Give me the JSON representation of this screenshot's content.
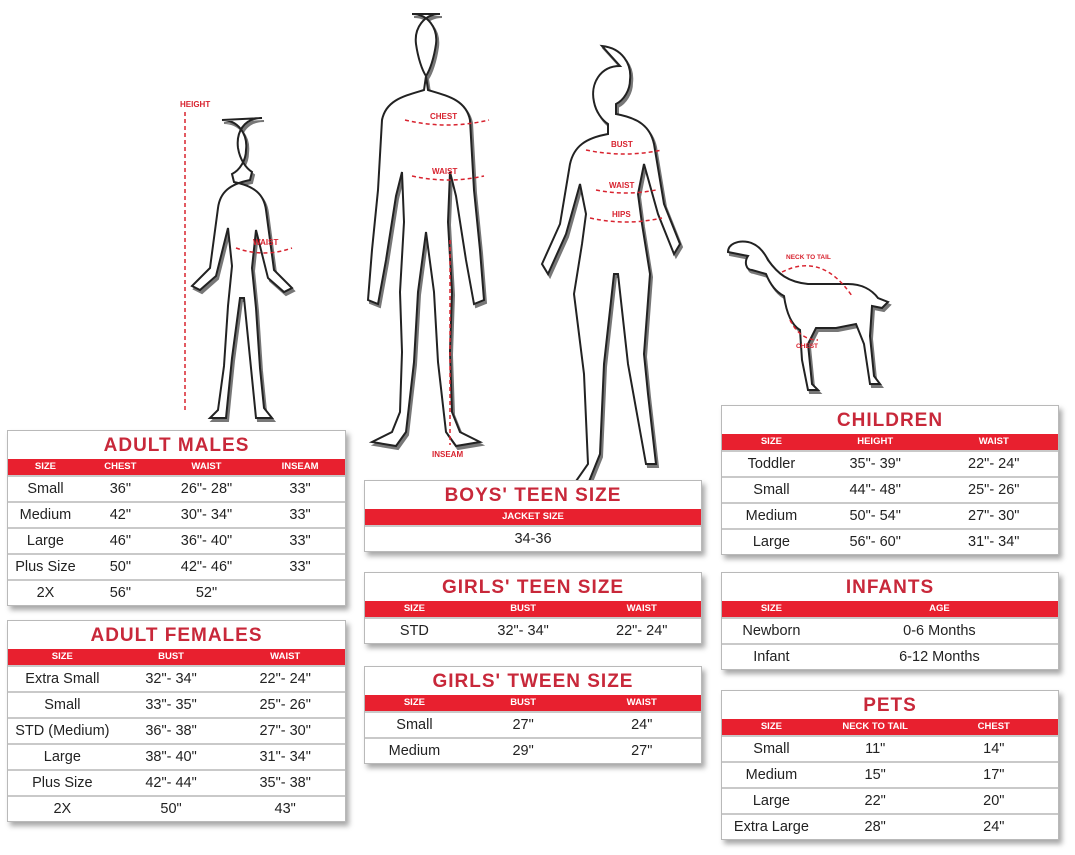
{
  "figure_labels": {
    "child_height": "HEIGHT",
    "child_waist": "WAIST",
    "man_chest": "CHEST",
    "man_waist": "WAIST",
    "man_inseam": "INSEAM",
    "woman_bust": "BUST",
    "woman_waist": "WAIST",
    "woman_hips": "HIPS",
    "dog_neck_to_tail": "NECK TO TAIL",
    "dog_chest": "CHEST"
  },
  "colors": {
    "header_red": "#e8202f",
    "title_red": "#c8283a",
    "measure_red": "#d8232f"
  },
  "tables": {
    "adult_males": {
      "title": "ADULT MALES",
      "headers": [
        "SIZE",
        "CHEST",
        "WAIST",
        "INSEAM"
      ],
      "rows": [
        [
          "Small",
          "36\"",
          "26\"- 28\"",
          "33\""
        ],
        [
          "Medium",
          "42\"",
          "30\"- 34\"",
          "33\""
        ],
        [
          "Large",
          "46\"",
          "36\"- 40\"",
          "33\""
        ],
        [
          "Plus Size",
          "50\"",
          "42\"- 46\"",
          "33\""
        ],
        [
          "2X",
          "56\"",
          "52\"",
          ""
        ]
      ]
    },
    "adult_females": {
      "title": "ADULT FEMALES",
      "headers": [
        "SIZE",
        "BUST",
        "WAIST"
      ],
      "rows": [
        [
          "Extra Small",
          "32\"- 34\"",
          "22\"- 24\""
        ],
        [
          "Small",
          "33\"- 35\"",
          "25\"- 26\""
        ],
        [
          "STD (Medium)",
          "36\"- 38\"",
          "27\"- 30\""
        ],
        [
          "Large",
          "38\"- 40\"",
          "31\"- 34\""
        ],
        [
          "Plus Size",
          "42\"- 44\"",
          "35\"- 38\""
        ],
        [
          "2X",
          "50\"",
          "43\""
        ]
      ]
    },
    "boys_teen": {
      "title": "BOYS' TEEN SIZE",
      "headers": [
        "JACKET SIZE"
      ],
      "rows": [
        [
          "34-36"
        ]
      ]
    },
    "girls_teen": {
      "title": "GIRLS' TEEN SIZE",
      "headers": [
        "SIZE",
        "BUST",
        "WAIST"
      ],
      "rows": [
        [
          "STD",
          "32\"- 34\"",
          "22\"- 24\""
        ]
      ]
    },
    "girls_tween": {
      "title": "GIRLS' TWEEN SIZE",
      "headers": [
        "SIZE",
        "BUST",
        "WAIST"
      ],
      "rows": [
        [
          "Small",
          "27\"",
          "24\""
        ],
        [
          "Medium",
          "29\"",
          "27\""
        ]
      ]
    },
    "children": {
      "title": "CHILDREN",
      "headers": [
        "SIZE",
        "HEIGHT",
        "WAIST"
      ],
      "rows": [
        [
          "Toddler",
          "35\"- 39\"",
          "22\"- 24\""
        ],
        [
          "Small",
          "44\"- 48\"",
          "25\"- 26\""
        ],
        [
          "Medium",
          "50\"- 54\"",
          "27\"- 30\""
        ],
        [
          "Large",
          "56\"- 60\"",
          "31\"- 34\""
        ]
      ]
    },
    "infants": {
      "title": "INFANTS",
      "headers": [
        "SIZE",
        "AGE"
      ],
      "rows": [
        [
          "Newborn",
          "0-6 Months"
        ],
        [
          "Infant",
          "6-12 Months"
        ]
      ]
    },
    "pets": {
      "title": "PETS",
      "headers": [
        "SIZE",
        "NECK TO TAIL",
        "CHEST"
      ],
      "rows": [
        [
          "Small",
          "11\"",
          "14\""
        ],
        [
          "Medium",
          "15\"",
          "17\""
        ],
        [
          "Large",
          "22\"",
          "20\""
        ],
        [
          "Extra Large",
          "28\"",
          "24\""
        ]
      ]
    }
  }
}
